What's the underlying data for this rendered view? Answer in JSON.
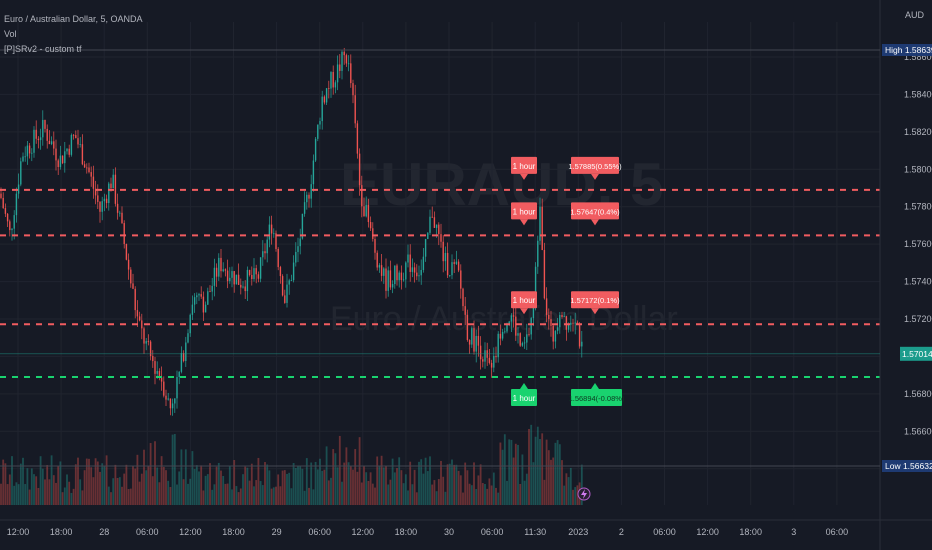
{
  "legend": {
    "title": "Euro / Australian Dollar, 5, OANDA",
    "vol": "Vol",
    "indicator": "[P]SRv2 - custom tf"
  },
  "watermark": {
    "symbol": "EURAUD, 5",
    "name": "Euro / Australian Dollar"
  },
  "currency": "AUD",
  "colors": {
    "background": "#161a25",
    "up": "#26a69a",
    "down": "#ef5350",
    "resistance": "#f15c60",
    "support": "#19d36f",
    "high_badge": "#1e3a72",
    "current_badge": "#1c9c8c",
    "grid": "#20242f",
    "text": "#b2b5be"
  },
  "icons": {
    "event": "lightning-icon"
  },
  "chart_data": {
    "type": "candlestick",
    "symbol": "EURAUD",
    "timeframe": "5",
    "ylim": [
      1.5635,
      1.588
    ],
    "y_ticks": [
      1.564,
      1.566,
      1.568,
      1.57,
      1.572,
      1.574,
      1.576,
      1.578,
      1.58,
      1.582,
      1.584,
      1.586
    ],
    "y_tick_labels": [
      "1.56400",
      "1.56600",
      "1.56800",
      "1.57000",
      "1.57200",
      "1.57400",
      "1.57600",
      "1.57800",
      "1.58000",
      "1.58200",
      "1.58400",
      "1.58600"
    ],
    "x_tick_labels": [
      "12:00",
      "18:00",
      "28",
      "06:00",
      "12:00",
      "18:00",
      "29",
      "06:00",
      "12:00",
      "18:00",
      "30",
      "06:00",
      "11:30",
      "2023",
      "2",
      "06:00",
      "12:00",
      "18:00",
      "3",
      "06:00"
    ],
    "high": {
      "label": "High",
      "value": "1.58639"
    },
    "low": {
      "label": "Low",
      "value": "1.56632"
    },
    "current": {
      "value": "1.57014",
      "price": 1.57014
    },
    "path": [
      [
        0,
        1.5787
      ],
      [
        10,
        1.5765
      ],
      [
        22,
        1.5808
      ],
      [
        44,
        1.5822
      ],
      [
        60,
        1.5805
      ],
      [
        75,
        1.5818
      ],
      [
        88,
        1.58
      ],
      [
        100,
        1.5778
      ],
      [
        112,
        1.5795
      ],
      [
        125,
        1.5758
      ],
      [
        138,
        1.5718
      ],
      [
        150,
        1.57
      ],
      [
        162,
        1.5688
      ],
      [
        170,
        1.5672
      ],
      [
        180,
        1.5692
      ],
      [
        192,
        1.573
      ],
      [
        205,
        1.5728
      ],
      [
        220,
        1.575
      ],
      [
        240,
        1.574
      ],
      [
        258,
        1.5742
      ],
      [
        272,
        1.5772
      ],
      [
        285,
        1.573
      ],
      [
        298,
        1.5758
      ],
      [
        310,
        1.5792
      ],
      [
        322,
        1.5838
      ],
      [
        335,
        1.585
      ],
      [
        346,
        1.5862
      ],
      [
        352,
        1.5842
      ],
      [
        360,
        1.579
      ],
      [
        372,
        1.5762
      ],
      [
        385,
        1.574
      ],
      [
        398,
        1.5744
      ],
      [
        410,
        1.575
      ],
      [
        422,
        1.5745
      ],
      [
        432,
        1.5778
      ],
      [
        445,
        1.575
      ],
      [
        458,
        1.5745
      ],
      [
        468,
        1.5712
      ],
      [
        480,
        1.5705
      ],
      [
        492,
        1.569
      ],
      [
        502,
        1.5718
      ],
      [
        512,
        1.5722
      ],
      [
        522,
        1.5702
      ],
      [
        528,
        1.571
      ],
      [
        534,
        1.573
      ],
      [
        540,
        1.5785
      ],
      [
        545,
        1.573
      ],
      [
        552,
        1.5708
      ],
      [
        560,
        1.5727
      ],
      [
        568,
        1.5718
      ],
      [
        575,
        1.5724
      ],
      [
        582,
        1.5702
      ]
    ],
    "sr_levels": [
      {
        "type": "resistance",
        "price": 1.5789,
        "tf_label": "1 hour",
        "value_label": "1.57885(0.55%)"
      },
      {
        "type": "resistance",
        "price": 1.57647,
        "tf_label": "1 hour",
        "value_label": "1.57647(0.4%)"
      },
      {
        "type": "resistance",
        "price": 1.57172,
        "tf_label": "1 hour",
        "value_label": "1.57172(0.1%)"
      },
      {
        "type": "support",
        "price": 1.5689,
        "tf_label": "1 hour",
        "value_label": "1.56894(-0.08%)"
      }
    ]
  }
}
